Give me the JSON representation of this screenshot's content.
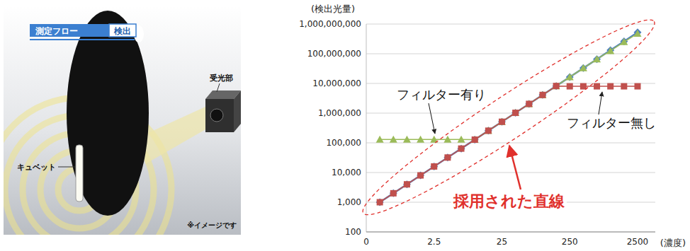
{
  "illustration": {
    "flow_label": "測定フロー",
    "step": "検出",
    "detector": "受光部",
    "cuvette": "キュベット",
    "note": "※イメージです"
  },
  "chart_data": {
    "type": "line",
    "y_label": "(検出光量)",
    "x_label": "(濃度)",
    "categories": [
      "0",
      null,
      null,
      null,
      null,
      "2.5",
      null,
      null,
      null,
      null,
      "25",
      null,
      null,
      null,
      null,
      "250",
      null,
      null,
      null,
      null,
      "2500"
    ],
    "series": [
      {
        "name": "採用された直線",
        "color": "#4f81bd",
        "marker": "diamond",
        "line_style": "solid",
        "values": [
          null,
          1000,
          2000,
          4000,
          8000,
          16000,
          32000,
          64000,
          128000,
          256000,
          512000,
          1024000,
          2048000,
          4096000,
          8192000,
          16384000,
          32768000,
          65536000,
          131072000,
          262144000,
          524288000
        ]
      },
      {
        "name": "フィルター有り",
        "color": "#9bbb59",
        "marker": "triangle",
        "line_style": "solid",
        "values": [
          null,
          130000,
          130000,
          130000,
          130000,
          130000,
          130000,
          130000,
          128000,
          256000,
          512000,
          1024000,
          2048000,
          4096000,
          8192000,
          16384000,
          32768000,
          65536000,
          125000000,
          250000000,
          480000000
        ]
      },
      {
        "name": "フィルター無し",
        "color": "#c0504d",
        "marker": "square",
        "line_style": "solid",
        "values": [
          null,
          1000,
          2000,
          4000,
          8000,
          16000,
          32000,
          64000,
          128000,
          256000,
          512000,
          1024000,
          2048000,
          4096000,
          8192000,
          8000000,
          8000000,
          8000000,
          8000000,
          8000000,
          8000000
        ]
      }
    ],
    "log": "y",
    "ylim": [
      100,
      1000000000
    ],
    "yticks": [
      100,
      {
        "value": 1000,
        "label": "1,000"
      },
      {
        "value": 10000,
        "label": "10,000"
      },
      {
        "value": 100000,
        "label": "100,000"
      },
      {
        "value": 1000000,
        "label": "1,000,000"
      },
      {
        "value": 10000000,
        "label": "10,000,000"
      },
      {
        "value": 100000000,
        "label": "100,000,000"
      },
      {
        "value": 1000000000,
        "label": "1,000,000,000"
      }
    ],
    "grid": true
  }
}
